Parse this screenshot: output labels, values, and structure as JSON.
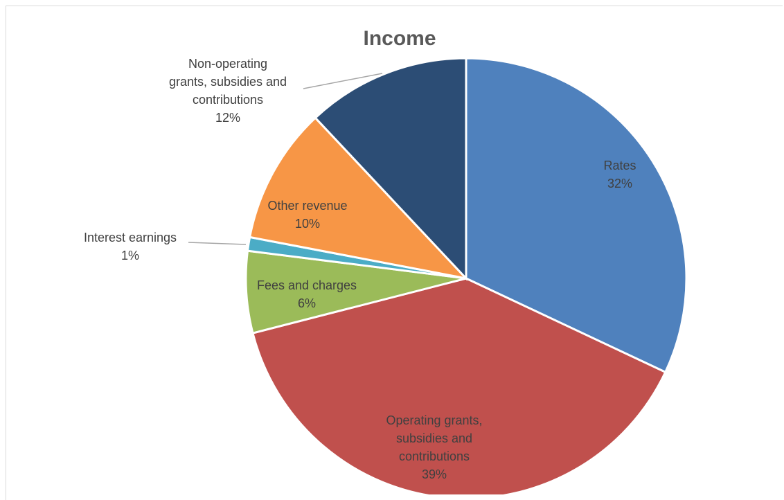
{
  "chart_data": {
    "type": "pie",
    "title": "Income",
    "slices": [
      {
        "name": "Rates",
        "value": 32,
        "label": [
          "Rates",
          "32%"
        ],
        "color": "#4f81bd"
      },
      {
        "name": "Operating grants, subsidies and contributions",
        "value": 39,
        "label": [
          "Operating grants,",
          "subsidies and",
          "contributions",
          "39%"
        ],
        "color": "#c0504d"
      },
      {
        "name": "Fees and charges",
        "value": 6,
        "label": [
          "Fees and charges",
          "6%"
        ],
        "color": "#9bbb59"
      },
      {
        "name": "Interest earnings",
        "value": 1,
        "label": [
          "Interest earnings",
          "1%"
        ],
        "color": "#4bacc6"
      },
      {
        "name": "Other revenue",
        "value": 10,
        "label": [
          "Other revenue",
          "10%"
        ],
        "color": "#f79646"
      },
      {
        "name": "Non-operating grants, subsidies and contributions",
        "value": 12,
        "label": [
          "Non-operating",
          "grants, subsidies and",
          "contributions",
          "12%"
        ],
        "color": "#2c4d75"
      }
    ]
  }
}
